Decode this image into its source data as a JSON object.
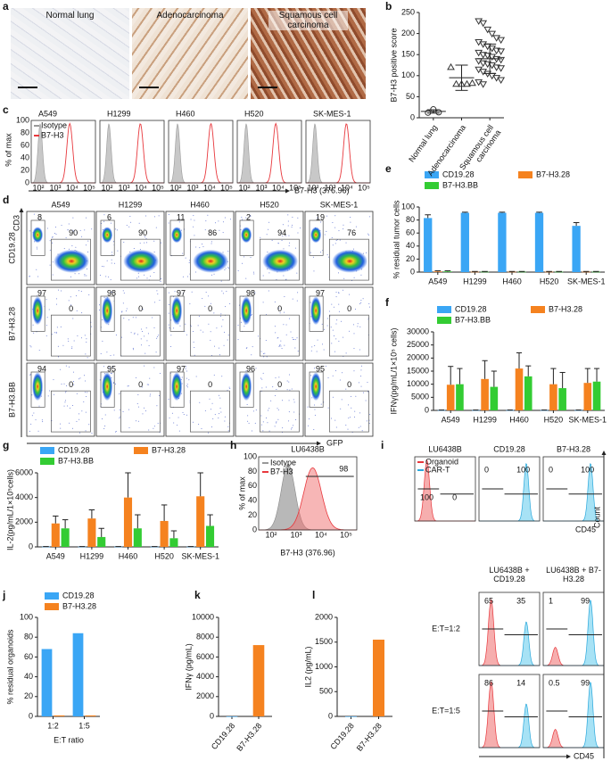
{
  "histology": {
    "label": "a",
    "images": [
      "Normal lung",
      "Adenocarcinoma",
      "Squamous cell carcinoma"
    ]
  },
  "flow_c": {
    "label": "c",
    "ylabel": "% of max",
    "yticks": [
      "100",
      "80",
      "60",
      "40",
      "20",
      "0"
    ],
    "samples": [
      "A549",
      "H1299",
      "H460",
      "H520",
      "SK-MES-1"
    ],
    "legend": [
      "Isotype",
      "B7-H3"
    ],
    "xticks": [
      "10²",
      "10³",
      "10⁴",
      "10⁵"
    ],
    "xlabel": "B7-H3 (376.96)"
  },
  "flow_d": {
    "label": "d",
    "columns": [
      "A549",
      "H1299",
      "H460",
      "H520",
      "SK-MES-1"
    ],
    "rows": [
      "CD19.28",
      "B7-H3.28",
      "B7-H3.BB"
    ],
    "ylabel": "CD3",
    "xlabel": "GFP",
    "percent": [
      [
        [
          8,
          90
        ],
        [
          6,
          90
        ],
        [
          11,
          86
        ],
        [
          2,
          94
        ],
        [
          19,
          76
        ]
      ],
      [
        [
          97,
          0
        ],
        [
          98,
          0
        ],
        [
          97,
          0
        ],
        [
          98,
          0
        ],
        [
          97,
          0
        ]
      ],
      [
        [
          94,
          0
        ],
        [
          95,
          0
        ],
        [
          97,
          0
        ],
        [
          96,
          0
        ],
        [
          95,
          0
        ]
      ]
    ]
  },
  "flow_h": {
    "label": "h",
    "title": "LU6438B",
    "legend": [
      "Isotype",
      "B7-H3"
    ],
    "percent": 98,
    "ylabel": "% of max",
    "yticks": [
      "100",
      "80",
      "60",
      "40",
      "20",
      "0"
    ],
    "xticks": [
      "10²",
      "10³",
      "10⁴",
      "10⁵"
    ],
    "xlabel": "B7-H3 (376.96)"
  },
  "flow_i": {
    "label": "i",
    "legend": [
      "Organoid",
      "CAR-T"
    ],
    "top": [
      {
        "title": "LU6438B",
        "values": [
          100,
          0
        ]
      },
      {
        "title": "CD19.28",
        "values": [
          0,
          100
        ]
      },
      {
        "title": "B7-H3.28",
        "values": [
          0,
          100
        ]
      }
    ],
    "xlabel": "CD45",
    "ylabel": "Count",
    "columns": [
      "LU6438B + CD19.28",
      "LU6438B + B7-H3.28"
    ],
    "rows": [
      {
        "label": "E:T=1:2",
        "values": [
          [
            65,
            35
          ],
          [
            1,
            99
          ]
        ]
      },
      {
        "label": "E:T=1:5",
        "values": [
          [
            86,
            14
          ],
          [
            0.5,
            99
          ]
        ]
      }
    ],
    "xlabel2": "CD45"
  },
  "chart_data": [
    {
      "label": "b",
      "type": "dot",
      "ylabel": "B7-H3 positive score",
      "categories": [
        "Normal lung",
        "Adenocarcinoma",
        "Squamous cell carcinoma"
      ],
      "markers": [
        "circle",
        "triangle",
        "triangle-down"
      ],
      "points": [
        [
          12,
          20,
          13
        ],
        [
          120,
          80,
          80,
          80,
          82
        ],
        [
          230,
          225,
          210,
          200,
          190,
          185,
          180,
          175,
          170,
          165,
          160,
          158,
          155,
          150,
          148,
          145,
          140,
          138,
          135,
          130,
          128,
          125,
          120,
          118,
          115,
          110,
          105,
          100,
          95,
          90,
          85,
          80
        ]
      ],
      "means": [
        15,
        95,
        140
      ],
      "sd": [
        4,
        30,
        35
      ],
      "ylim": [
        0,
        250
      ],
      "yticks": [
        0,
        50,
        100,
        150,
        200,
        250
      ]
    },
    {
      "label": "e",
      "type": "bar",
      "ylabel": "% residual tumor cells",
      "categories": [
        "A549",
        "H1299",
        "H460",
        "H520",
        "SK-MES-1"
      ],
      "series": [
        {
          "name": "CD19.28",
          "color": "#3aa6f5",
          "values": [
            83,
            91,
            91,
            91,
            71
          ],
          "errors": [
            5,
            1,
            1,
            1,
            5
          ]
        },
        {
          "name": "B7-H3.28",
          "color": "#f5821f",
          "values": [
            1,
            0.5,
            0.5,
            0.5,
            0.5
          ],
          "errors": [
            1,
            0.5,
            0.5,
            0.5,
            0.5
          ]
        },
        {
          "name": "B7-H3.BB",
          "color": "#33cc33",
          "values": [
            1,
            0.5,
            0.5,
            0.5,
            0.5
          ],
          "errors": [
            1,
            0.5,
            0.5,
            0.5,
            0.5
          ]
        }
      ],
      "ylim": [
        0,
        100
      ],
      "yticks": [
        0,
        20,
        40,
        60,
        80,
        100
      ]
    },
    {
      "label": "f",
      "type": "bar",
      "ylabel": "IFNγ(pg/mL/1×10⁵ cells)",
      "categories": [
        "A549",
        "H1299",
        "H460",
        "H520",
        "SK-MES-1"
      ],
      "series": [
        {
          "name": "CD19.28",
          "color": "#3aa6f5",
          "values": [
            100,
            100,
            100,
            100,
            100
          ],
          "errors": [
            50,
            50,
            50,
            50,
            50
          ]
        },
        {
          "name": "B7-H3.28",
          "color": "#f5821f",
          "values": [
            9800,
            12000,
            16000,
            10000,
            10500
          ],
          "errors": [
            7000,
            7000,
            6000,
            6000,
            5500
          ]
        },
        {
          "name": "B7-H3.BB",
          "color": "#33cc33",
          "values": [
            10000,
            9000,
            13000,
            8500,
            11000
          ],
          "errors": [
            6000,
            6000,
            4000,
            6000,
            5000
          ]
        }
      ],
      "ylim": [
        0,
        30000
      ],
      "yticks": [
        0,
        5000,
        10000,
        15000,
        20000,
        25000,
        30000
      ]
    },
    {
      "label": "g",
      "type": "bar",
      "ylabel": "IL-2(pg/mL/1×10⁵cells)",
      "categories": [
        "A549",
        "H1299",
        "H460",
        "H520",
        "SK-MES-1"
      ],
      "series": [
        {
          "name": "CD19.28",
          "color": "#3aa6f5",
          "values": [
            20,
            20,
            20,
            20,
            20
          ],
          "errors": [
            10,
            10,
            10,
            10,
            10
          ]
        },
        {
          "name": "B7-H3.28",
          "color": "#f5821f",
          "values": [
            1900,
            2300,
            4000,
            2100,
            4100
          ],
          "errors": [
            600,
            700,
            2000,
            1300,
            1900
          ]
        },
        {
          "name": "B7-H3.BB",
          "color": "#33cc33",
          "values": [
            1500,
            800,
            1500,
            700,
            1700
          ],
          "errors": [
            700,
            700,
            1100,
            600,
            900
          ]
        }
      ],
      "ylim": [
        0,
        6000
      ],
      "yticks": [
        0,
        2000,
        4000,
        6000
      ]
    },
    {
      "label": "j",
      "type": "bar",
      "ylabel": "% residual organoids",
      "xlabel": "E:T ratio",
      "categories": [
        "1:2",
        "1:5"
      ],
      "series": [
        {
          "name": "CD19.28",
          "color": "#3aa6f5",
          "values": [
            68,
            84
          ]
        },
        {
          "name": "B7-H3.28",
          "color": "#f5821f",
          "values": [
            1,
            1
          ]
        }
      ],
      "ylim": [
        0,
        100
      ],
      "yticks": [
        0,
        20,
        40,
        60,
        80,
        100
      ]
    },
    {
      "label": "k",
      "type": "bar",
      "ylabel": "IFNγ (pg/mL)",
      "categories": [
        "CD19.28",
        "B7-H3.28"
      ],
      "values": [
        0,
        7200
      ],
      "colors": [
        "#3aa6f5",
        "#f5821f"
      ],
      "ylim": [
        0,
        10000
      ],
      "yticks": [
        0,
        2000,
        4000,
        6000,
        8000,
        10000
      ]
    },
    {
      "label": "l",
      "type": "bar",
      "ylabel": "IL2 (pg/mL)",
      "categories": [
        "CD19.28",
        "B7-H3.28"
      ],
      "values": [
        0,
        1550
      ],
      "colors": [
        "#3aa6f5",
        "#f5821f"
      ],
      "ylim": [
        0,
        2000
      ],
      "yticks": [
        0,
        500,
        1000,
        1500,
        2000
      ]
    }
  ]
}
